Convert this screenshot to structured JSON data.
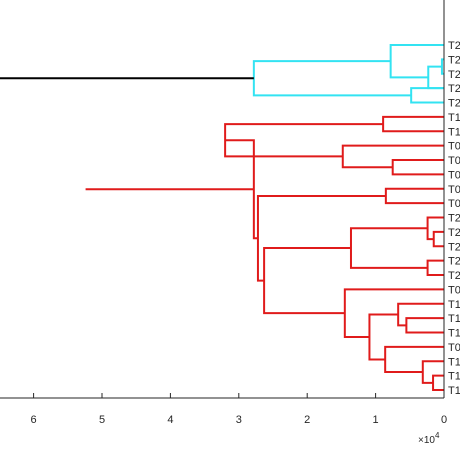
{
  "chart_data": {
    "type": "dendrogram",
    "orientation": "horizontal",
    "x_axis": {
      "reversed": true,
      "xlim": [
        0,
        65000
      ],
      "ticks": [
        0,
        10000,
        20000,
        30000,
        40000,
        50000,
        60000
      ],
      "tick_labels": [
        "0",
        "1",
        "2",
        "3",
        "4",
        "5",
        "6"
      ],
      "exponent_base": "×10",
      "exponent_power": "4"
    },
    "colors": {
      "cyan_cluster": "#33e3f2",
      "red_cluster": "#e01b1b",
      "root_link": "#000000",
      "axis": "#262626"
    },
    "leaves": [
      {
        "label": "T2"
      },
      {
        "label": "T2"
      },
      {
        "label": "T2"
      },
      {
        "label": "T2"
      },
      {
        "label": "T2"
      },
      {
        "label": "T1"
      },
      {
        "label": "T1"
      },
      {
        "label": "T0"
      },
      {
        "label": "T0"
      },
      {
        "label": "T0"
      },
      {
        "label": "T0"
      },
      {
        "label": "T0"
      },
      {
        "label": "T2"
      },
      {
        "label": "T2"
      },
      {
        "label": "T2"
      },
      {
        "label": "T2"
      },
      {
        "label": "T2"
      },
      {
        "label": "T0"
      },
      {
        "label": "T1"
      },
      {
        "label": "T1"
      },
      {
        "label": "T1"
      },
      {
        "label": "T0"
      },
      {
        "label": "T1"
      },
      {
        "label": "T1"
      },
      {
        "label": "T1"
      }
    ],
    "links": [
      {
        "a": "L1",
        "b": "L2",
        "height": 300,
        "color": "cyan_cluster"
      },
      {
        "a": "L3",
        "b": "N1",
        "height": 2300,
        "color": "cyan_cluster"
      },
      {
        "a": "L0",
        "b": "N2",
        "height": 7800,
        "color": "cyan_cluster"
      },
      {
        "a": "L3b",
        "b": "L4",
        "height": 4800,
        "color": "cyan_cluster"
      },
      {
        "a": "N3",
        "b": "N4",
        "height": 27800,
        "color": "cyan_cluster"
      },
      {
        "a": "L5",
        "b": "L6",
        "height": 8900,
        "color": "red_cluster"
      },
      {
        "a": "L8",
        "b": "L9",
        "height": 7500,
        "color": "red_cluster"
      },
      {
        "a": "L7",
        "b": "N7",
        "height": 14800,
        "color": "red_cluster"
      },
      {
        "a": "N6",
        "b": "N8",
        "height": 32000,
        "color": "red_cluster"
      },
      {
        "a": "L10",
        "b": "L11",
        "height": 8500,
        "color": "red_cluster"
      },
      {
        "a": "L13",
        "b": "L14",
        "height": 1500,
        "color": "red_cluster"
      },
      {
        "a": "L12",
        "b": "N11",
        "height": 2400,
        "color": "red_cluster"
      },
      {
        "a": "L15",
        "b": "L16",
        "height": 2400,
        "color": "red_cluster"
      },
      {
        "a": "N12",
        "b": "N13",
        "height": 13600,
        "color": "red_cluster"
      },
      {
        "a": "L19",
        "b": "L20",
        "height": 5500,
        "color": "red_cluster"
      },
      {
        "a": "L18",
        "b": "N15",
        "height": 6700,
        "color": "red_cluster"
      },
      {
        "a": "L23",
        "b": "L24",
        "height": 1600,
        "color": "red_cluster"
      },
      {
        "a": "L22",
        "b": "N17",
        "height": 3100,
        "color": "red_cluster"
      },
      {
        "a": "L21",
        "b": "N18",
        "height": 8600,
        "color": "red_cluster"
      },
      {
        "a": "N16",
        "b": "N19",
        "height": 10900,
        "color": "red_cluster"
      },
      {
        "a": "L17",
        "b": "N20",
        "height": 14500,
        "color": "red_cluster"
      },
      {
        "a": "N14",
        "b": "N21",
        "height": 26300,
        "color": "red_cluster"
      },
      {
        "a": "N10",
        "b": "N22",
        "height": 27200,
        "color": "red_cluster"
      },
      {
        "a": "N9",
        "b": "N23",
        "height": 27800,
        "color": "red_cluster"
      },
      {
        "a": "N24",
        "b": "N25",
        "height": 52400,
        "color": "red_cluster"
      },
      {
        "a": "N5",
        "b": "N26",
        "height": 65000,
        "color": "root_link"
      }
    ]
  }
}
